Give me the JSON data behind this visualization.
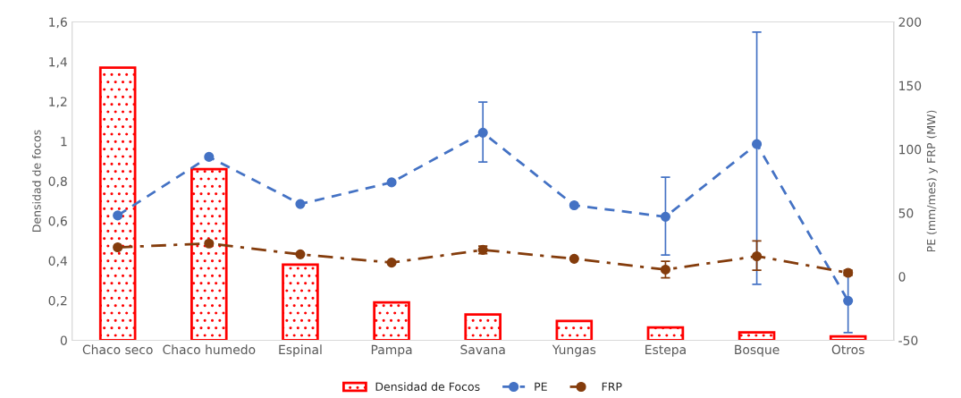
{
  "chart_data": {
    "type": "bar",
    "categories": [
      "Chaco seco",
      "Chaco humedo",
      "Espinal",
      "Pampa",
      "Savana",
      "Yungas",
      "Estepa",
      "Bosque",
      "Otros"
    ],
    "ylabel": "Densidad de focos",
    "y2label": "PE (mm/mes) y FRP (MW)",
    "ylim": [
      0,
      1.6
    ],
    "yticks": [
      0,
      {
        "value": 0.2,
        "label": "0,2"
      },
      {
        "value": 0.4,
        "label": "0,4"
      },
      {
        "value": 0.6,
        "label": "0,6"
      },
      {
        "value": 0.8,
        "label": "0,8"
      },
      1,
      {
        "value": 1.2,
        "label": "1,2"
      },
      {
        "value": 1.4,
        "label": "1,4"
      },
      {
        "value": 1.6,
        "label": "1,6"
      }
    ],
    "y2lim": [
      -50,
      200
    ],
    "y2ticks": [
      -50,
      0,
      50,
      100,
      150,
      200
    ],
    "grid": false,
    "legend": "bottom",
    "series": [
      {
        "name": "Densidad de Focos",
        "color": "#ff0000",
        "values": [
          1.37,
          0.86,
          0.38,
          0.19,
          0.13,
          0.097,
          0.064,
          0.04,
          0.02
        ]
      },
      {
        "name": "PE",
        "type": "line",
        "axis": "y2",
        "color": "#4472c4",
        "marker": "circle",
        "line_style": "dashed",
        "values": [
          48,
          94,
          57,
          74,
          113,
          56,
          47,
          104,
          -19
        ],
        "errors": [
          null,
          null,
          null,
          null,
          [
            90,
            137
          ],
          null,
          [
            17,
            78
          ],
          [
            -6,
            192
          ],
          [
            -44,
            2
          ]
        ]
      },
      {
        "name": "FRP",
        "type": "line",
        "axis": "y2",
        "color": "#843c0c",
        "marker": "circle",
        "line_style": "dashdot",
        "values": [
          23,
          26,
          17.5,
          11,
          21,
          14,
          5.5,
          16,
          3
        ],
        "errors": [
          null,
          null,
          null,
          null,
          [
            18,
            24
          ],
          null,
          [
            -1,
            12
          ],
          [
            5,
            28
          ],
          [
            1,
            5
          ]
        ]
      }
    ]
  }
}
